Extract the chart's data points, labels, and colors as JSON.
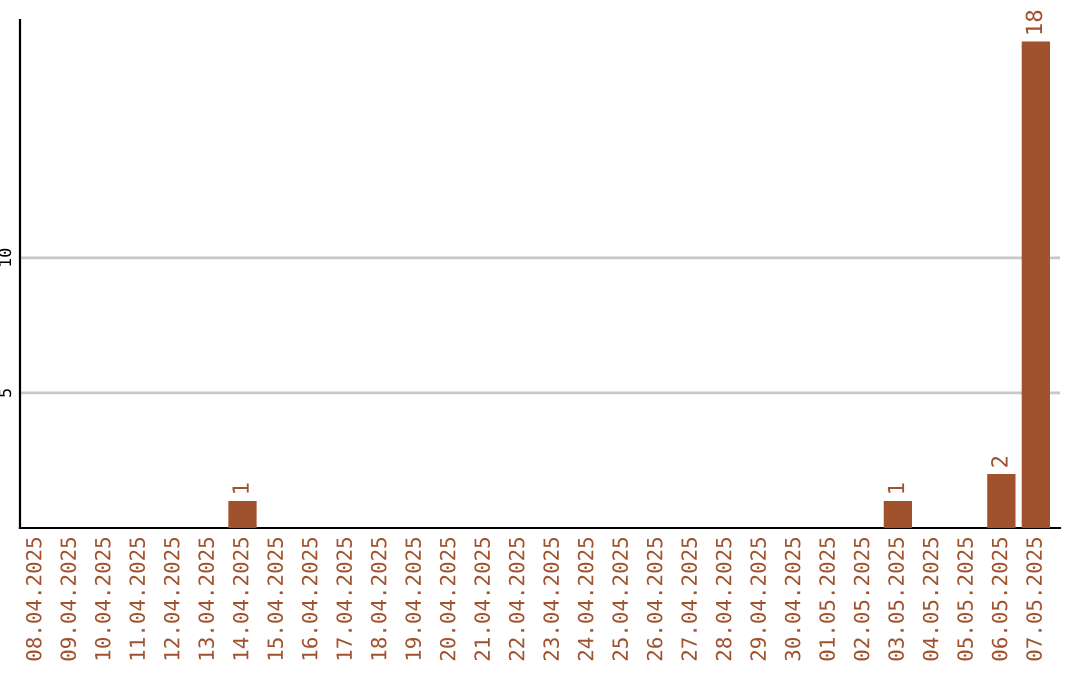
{
  "chart_data": {
    "type": "bar",
    "categories": [
      "08.04.2025",
      "09.04.2025",
      "10.04.2025",
      "11.04.2025",
      "12.04.2025",
      "13.04.2025",
      "14.04.2025",
      "15.04.2025",
      "16.04.2025",
      "17.04.2025",
      "18.04.2025",
      "19.04.2025",
      "20.04.2025",
      "21.04.2025",
      "22.04.2025",
      "23.04.2025",
      "24.04.2025",
      "25.04.2025",
      "26.04.2025",
      "27.04.2025",
      "28.04.2025",
      "29.04.2025",
      "30.04.2025",
      "01.05.2025",
      "02.05.2025",
      "03.05.2025",
      "04.05.2025",
      "05.05.2025",
      "06.05.2025",
      "07.05.2025"
    ],
    "values": [
      0,
      0,
      0,
      0,
      0,
      0,
      1,
      0,
      0,
      0,
      0,
      0,
      0,
      0,
      0,
      0,
      0,
      0,
      0,
      0,
      0,
      0,
      0,
      0,
      0,
      1,
      0,
      0,
      2,
      18
    ],
    "value_labels": [
      null,
      null,
      null,
      null,
      null,
      null,
      "1",
      null,
      null,
      null,
      null,
      null,
      null,
      null,
      null,
      null,
      null,
      null,
      null,
      null,
      null,
      null,
      null,
      null,
      null,
      "1",
      null,
      null,
      "2",
      "18"
    ],
    "color": "#a0522d",
    "ylim": [
      0,
      18.8
    ],
    "yticks": [
      5,
      10
    ],
    "grid": "y"
  }
}
